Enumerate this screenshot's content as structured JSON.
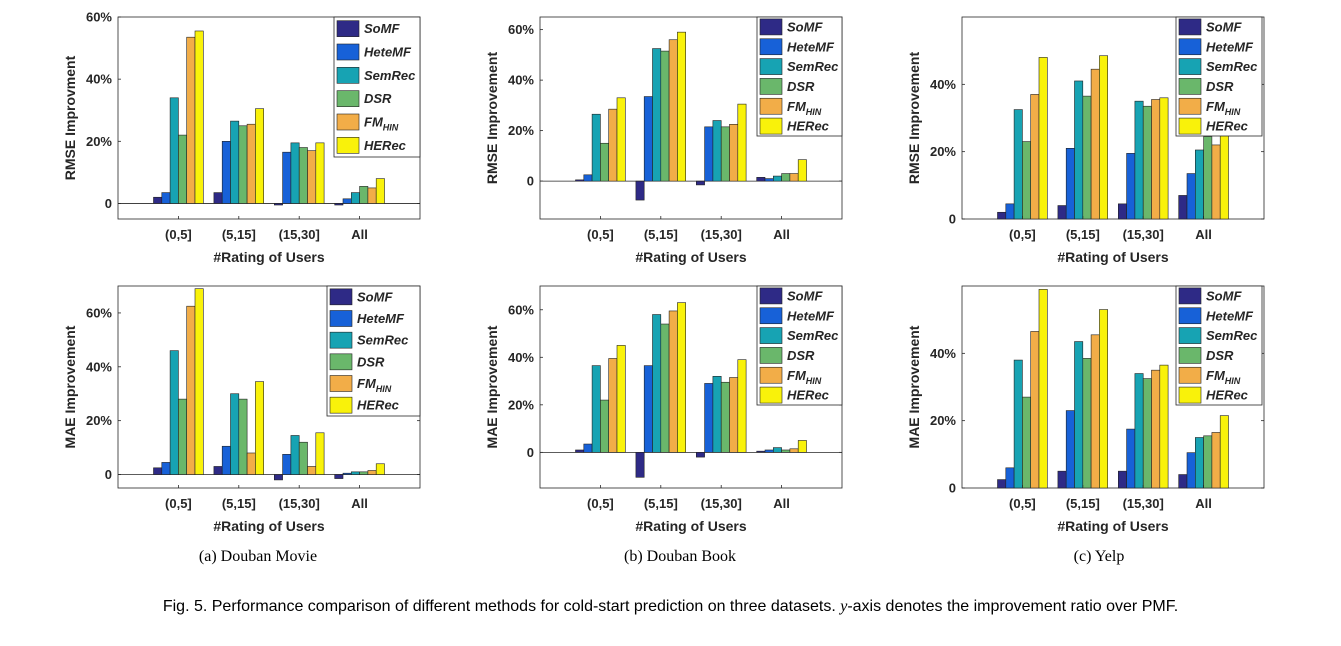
{
  "series_names": [
    "SoMF",
    "HeteMF",
    "SemRec",
    "DSR",
    "FM",
    "HERec"
  ],
  "series_subscripts": [
    "",
    "",
    "",
    "",
    "HIN",
    ""
  ],
  "colors": [
    "#2e2a86",
    "#1761d8",
    "#17a3b3",
    "#6ab76b",
    "#f2ad48",
    "#f9f20a"
  ],
  "captions": {
    "a": "(a)  Douban Movie",
    "b": "(b)  Douban Book",
    "c": "(c)  Yelp",
    "figure_prefix": "Fig. 5. Performance comparison of different methods for cold-start prediction on three datasets. ",
    "figure_y": "y",
    "figure_suffix": "-axis denotes the improvement ratio over PMF."
  },
  "chart_data": [
    {
      "type": "bar",
      "dataset": "Douban Movie",
      "metric": "RMSE",
      "ylabel": "RMSE Improvment",
      "xlabel": "#Rating of Users",
      "categories": [
        "(0,5]",
        "(5,15]",
        "(15,30]",
        "All"
      ],
      "ylim": [
        -5,
        60
      ],
      "yticks": [
        0,
        20,
        40,
        60
      ],
      "ytick_labels": [
        "0",
        "20%",
        "40%",
        "60%"
      ],
      "legend": "top-right",
      "series": [
        {
          "name": "SoMF",
          "values": [
            2,
            3.5,
            -0.5,
            -0.5
          ]
        },
        {
          "name": "HeteMF",
          "values": [
            3.5,
            20,
            16.5,
            1.5
          ]
        },
        {
          "name": "SemRec",
          "values": [
            34,
            26.5,
            19.5,
            3.5
          ]
        },
        {
          "name": "DSR",
          "values": [
            22,
            25,
            18,
            5.5
          ]
        },
        {
          "name": "FM_HIN",
          "values": [
            53.5,
            25.5,
            17,
            5
          ]
        },
        {
          "name": "HERec",
          "values": [
            55.5,
            30.5,
            19.5,
            8
          ]
        }
      ]
    },
    {
      "type": "bar",
      "dataset": "Douban Book",
      "metric": "RMSE",
      "ylabel": "RMSE Improvement",
      "xlabel": "#Rating of Users",
      "categories": [
        "(0,5]",
        "(5,15]",
        "(15,30]",
        "All"
      ],
      "ylim": [
        -15,
        65
      ],
      "yticks": [
        0,
        20,
        40,
        60
      ],
      "ytick_labels": [
        "0",
        "20%",
        "40%",
        "60%"
      ],
      "legend": "top-right",
      "series": [
        {
          "name": "SoMF",
          "values": [
            0.5,
            -7.5,
            -1.5,
            1.5
          ]
        },
        {
          "name": "HeteMF",
          "values": [
            2.5,
            33.5,
            21.5,
            1
          ]
        },
        {
          "name": "SemRec",
          "values": [
            26.5,
            52.5,
            24,
            2
          ]
        },
        {
          "name": "DSR",
          "values": [
            15,
            51.5,
            21.5,
            3
          ]
        },
        {
          "name": "FM_HIN",
          "values": [
            28.5,
            56,
            22.5,
            3
          ]
        },
        {
          "name": "HERec",
          "values": [
            33,
            59,
            30.5,
            8.5
          ]
        }
      ]
    },
    {
      "type": "bar",
      "dataset": "Yelp",
      "metric": "RMSE",
      "ylabel": "RMSE Improvement",
      "xlabel": "#Rating of Users",
      "categories": [
        "(0,5]",
        "(5,15]",
        "(15,30]",
        "All"
      ],
      "ylim": [
        0,
        60
      ],
      "yticks": [
        0,
        20,
        40
      ],
      "ytick_labels": [
        "0",
        "20%",
        "40%"
      ],
      "legend": "top-right",
      "series": [
        {
          "name": "SoMF",
          "values": [
            2,
            4,
            4.5,
            7
          ]
        },
        {
          "name": "HeteMF",
          "values": [
            4.5,
            21,
            19.5,
            13.5
          ]
        },
        {
          "name": "SemRec",
          "values": [
            32.5,
            41,
            35,
            20.5
          ]
        },
        {
          "name": "DSR",
          "values": [
            23,
            36.5,
            33.5,
            24.5
          ]
        },
        {
          "name": "FM_HIN",
          "values": [
            37,
            44.5,
            35.5,
            22
          ]
        },
        {
          "name": "HERec",
          "values": [
            48,
            48.5,
            36,
            25
          ]
        }
      ]
    },
    {
      "type": "bar",
      "dataset": "Douban Movie",
      "metric": "MAE",
      "ylabel": "MAE Improvement",
      "xlabel": "#Rating of Users",
      "categories": [
        "(0,5]",
        "(5,15]",
        "(15,30]",
        "All"
      ],
      "ylim": [
        -5,
        70
      ],
      "yticks": [
        0,
        20,
        40,
        60
      ],
      "ytick_labels": [
        "0",
        "20%",
        "40%",
        "60%"
      ],
      "legend": "top-right",
      "series": [
        {
          "name": "SoMF",
          "values": [
            2.5,
            3,
            -2,
            -1.5
          ]
        },
        {
          "name": "HeteMF",
          "values": [
            4.5,
            10.5,
            7.5,
            0.5
          ]
        },
        {
          "name": "SemRec",
          "values": [
            46,
            30,
            14.5,
            1
          ]
        },
        {
          "name": "DSR",
          "values": [
            28,
            28,
            12,
            1
          ]
        },
        {
          "name": "FM_HIN",
          "values": [
            62.5,
            8,
            3,
            1.5
          ]
        },
        {
          "name": "HERec",
          "values": [
            69,
            34.5,
            15.5,
            4
          ]
        }
      ]
    },
    {
      "type": "bar",
      "dataset": "Douban Book",
      "metric": "MAE",
      "ylabel": "MAE Improvement",
      "xlabel": "#Rating of Users",
      "categories": [
        "(0,5]",
        "(5,15]",
        "(15,30]",
        "All"
      ],
      "ylim": [
        -15,
        70
      ],
      "yticks": [
        0,
        20,
        40,
        60
      ],
      "ytick_labels": [
        "0",
        "20%",
        "40%",
        "60%"
      ],
      "legend": "top-right",
      "series": [
        {
          "name": "SoMF",
          "values": [
            1,
            -10.5,
            -2,
            0.5
          ]
        },
        {
          "name": "HeteMF",
          "values": [
            3.5,
            36.5,
            29,
            1
          ]
        },
        {
          "name": "SemRec",
          "values": [
            36.5,
            58,
            32,
            2
          ]
        },
        {
          "name": "DSR",
          "values": [
            22,
            54,
            29.5,
            1
          ]
        },
        {
          "name": "FM_HIN",
          "values": [
            39.5,
            59.5,
            31.5,
            1.5
          ]
        },
        {
          "name": "HERec",
          "values": [
            45,
            63,
            39,
            5
          ]
        }
      ]
    },
    {
      "type": "bar",
      "dataset": "Yelp",
      "metric": "MAE",
      "ylabel": "MAE Improvement",
      "xlabel": "#Rating of Users",
      "categories": [
        "(0,5]",
        "(5,15]",
        "(15,30]",
        "All"
      ],
      "ylim": [
        0,
        60
      ],
      "yticks": [
        0,
        20,
        40
      ],
      "ytick_labels": [
        "0",
        "20%",
        "40%"
      ],
      "legend": "top-right",
      "series": [
        {
          "name": "SoMF",
          "values": [
            2.5,
            5,
            5,
            4
          ]
        },
        {
          "name": "HeteMF",
          "values": [
            6,
            23,
            17.5,
            10.5
          ]
        },
        {
          "name": "SemRec",
          "values": [
            38,
            43.5,
            34,
            15
          ]
        },
        {
          "name": "DSR",
          "values": [
            27,
            38.5,
            32.5,
            15.5
          ]
        },
        {
          "name": "FM_HIN",
          "values": [
            46.5,
            45.5,
            35,
            16.5
          ]
        },
        {
          "name": "HERec",
          "values": [
            59,
            53,
            36.5,
            21.5
          ]
        }
      ]
    }
  ]
}
